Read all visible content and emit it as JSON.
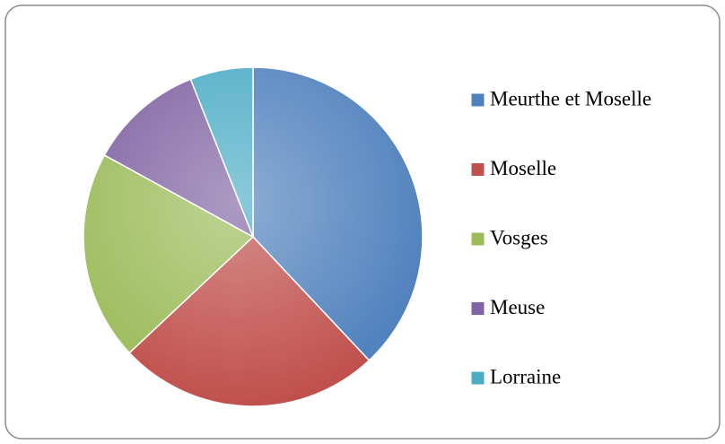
{
  "chart_data": {
    "type": "pie",
    "categories": [
      "Meurthe et Moselle",
      "Moselle",
      "Vosges",
      "Meuse",
      "Lorraine"
    ],
    "values": [
      38,
      25,
      20,
      11,
      6
    ],
    "colors": [
      "#4f81bd",
      "#c0504d",
      "#9bbb59",
      "#8064a2",
      "#4bacc6"
    ],
    "legend": "right"
  }
}
